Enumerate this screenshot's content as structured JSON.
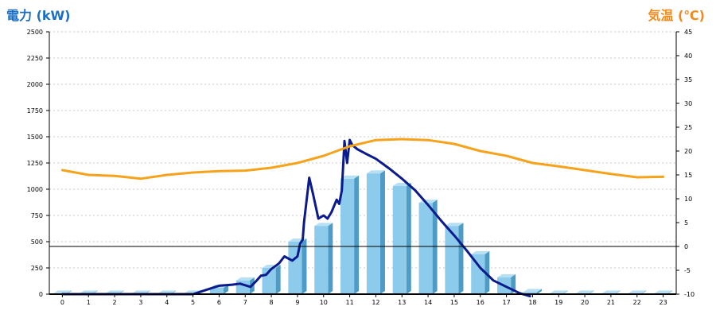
{
  "chart_data": {
    "type": "bar",
    "y_left_label": "電力 (kW)",
    "y_right_label": "気温 (℃)",
    "left_ylim": [
      0,
      2500
    ],
    "left_ticks": [
      0,
      250,
      500,
      750,
      1000,
      1250,
      1500,
      1750,
      2000,
      2250,
      2500
    ],
    "right_ylim": [
      -10,
      45
    ],
    "right_ticks": [
      -10,
      -5,
      0,
      5,
      10,
      15,
      20,
      25,
      30,
      35,
      40,
      45
    ],
    "categories": [
      "0",
      "1",
      "2",
      "3",
      "4",
      "5",
      "6",
      "7",
      "8",
      "9",
      "10",
      "11",
      "12",
      "13",
      "14",
      "15",
      "16",
      "17",
      "18",
      "19",
      "20",
      "21",
      "22",
      "23"
    ],
    "grid": true,
    "series": [
      {
        "type": "bar",
        "axis": "left",
        "values": [
          5,
          5,
          5,
          5,
          5,
          5,
          60,
          130,
          250,
          500,
          650,
          1100,
          1150,
          1030,
          870,
          650,
          380,
          160,
          20,
          5,
          5,
          5,
          5,
          5
        ]
      },
      {
        "type": "line",
        "axis": "left",
        "x": [
          0,
          5.0,
          5.5,
          6.0,
          6.5,
          6.8,
          7.2,
          7.4,
          7.6,
          7.8,
          8.0,
          8.2,
          8.3,
          8.5,
          8.8,
          9.0,
          9.1,
          9.2,
          9.25,
          9.45,
          9.6,
          9.8,
          10.0,
          10.15,
          10.3,
          10.5,
          10.6,
          10.7,
          10.8,
          10.9,
          11.0,
          11.1,
          11.3,
          11.6,
          12.0,
          12.5,
          13.0,
          13.5,
          14.0,
          14.5,
          15.0,
          15.5,
          16.0,
          16.5,
          17.0,
          17.5,
          17.9
        ],
        "values": [
          0,
          0,
          40,
          80,
          90,
          100,
          70,
          120,
          175,
          185,
          240,
          275,
          295,
          360,
          320,
          360,
          480,
          520,
          680,
          1110,
          950,
          720,
          750,
          720,
          780,
          900,
          860,
          990,
          1460,
          1250,
          1470,
          1420,
          1380,
          1340,
          1290,
          1200,
          1100,
          990,
          850,
          700,
          560,
          410,
          250,
          130,
          70,
          10,
          -20
        ]
      },
      {
        "type": "line",
        "axis": "right",
        "x": [
          0,
          1,
          2,
          3,
          4,
          5,
          6,
          7,
          8,
          9,
          10,
          11,
          12,
          13,
          14,
          15,
          16,
          17,
          18,
          19,
          20,
          21,
          22,
          23
        ],
        "values": [
          16,
          15,
          14.8,
          14.2,
          15,
          15.5,
          15.8,
          15.9,
          16.5,
          17.5,
          19,
          21,
          22.3,
          22.5,
          22.3,
          21.5,
          20,
          19,
          17.5,
          16.8,
          16,
          15.2,
          14.5,
          14.6
        ]
      }
    ],
    "colors": {
      "bar_face": "#8ccbeb",
      "bar_side": "#4e9cc6",
      "bar_top": "#b8e0f5",
      "power_line": "#0b1a8c",
      "temp_line": "#f7a21b",
      "left_label": "#1a6fc4",
      "right_label": "#f08a1c"
    }
  }
}
